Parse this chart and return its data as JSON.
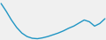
{
  "x": [
    0,
    1,
    2,
    3,
    4,
    5,
    6,
    7,
    8,
    9,
    10,
    11,
    12,
    13,
    14,
    15,
    16,
    17,
    18,
    19,
    20
  ],
  "y": [
    90,
    72,
    52,
    35,
    22,
    14,
    10,
    9,
    11,
    14,
    18,
    22,
    27,
    33,
    38,
    45,
    52,
    48,
    38,
    44,
    55
  ],
  "line_color": "#2196c4",
  "linewidth": 1.0,
  "background_color": "#f0f0f0"
}
